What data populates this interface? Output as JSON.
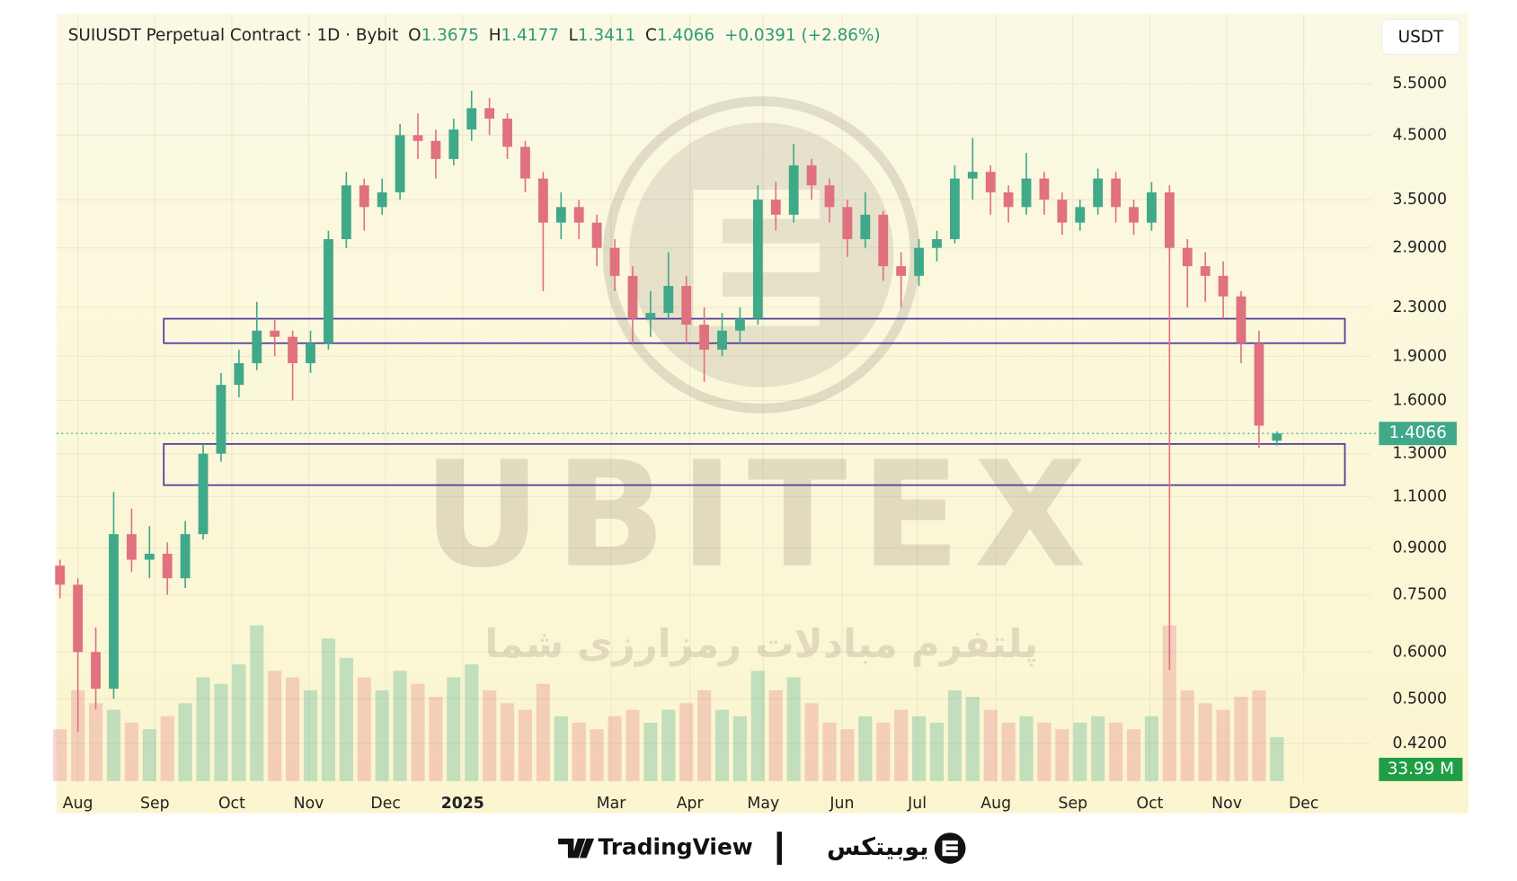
{
  "chart_data": {
    "type": "candlestick",
    "title": "SUIUSDT Perpetual Contract · 1D · Bybit",
    "ohlc_labels": [
      "O",
      "H",
      "L",
      "C"
    ],
    "change_label": "+0.0391 (+2.86%)",
    "currency": "USDT",
    "up_color": "#3fa98a",
    "down_color": "#e0717f",
    "log_scale": true,
    "grid": true,
    "open": [
      0.84,
      0.78,
      0.6,
      0.52,
      0.95,
      0.86,
      0.88,
      0.8,
      0.95,
      1.3,
      1.7,
      1.85,
      2.1,
      2.05,
      1.85,
      2.0,
      3.0,
      3.7,
      3.4,
      3.6,
      4.5,
      4.4,
      4.1,
      4.6,
      5.0,
      4.8,
      4.3,
      3.8,
      3.2,
      3.4,
      3.2,
      2.9,
      2.6,
      2.2,
      2.25,
      2.5,
      2.15,
      1.95,
      2.1,
      2.2,
      3.5,
      3.3,
      4.0,
      3.7,
      3.4,
      3.0,
      3.3,
      2.7,
      2.6,
      2.9,
      3.0,
      3.8,
      3.9,
      3.6,
      3.4,
      3.8,
      3.5,
      3.2,
      3.4,
      3.8,
      3.4,
      3.2,
      3.6,
      2.9,
      2.7,
      2.6,
      2.4,
      2.0,
      1.3675
    ],
    "high": [
      0.86,
      0.8,
      0.66,
      1.12,
      1.05,
      0.98,
      0.92,
      1.0,
      1.35,
      1.78,
      1.95,
      2.35,
      2.2,
      2.1,
      2.1,
      3.1,
      3.9,
      3.8,
      3.8,
      4.7,
      4.9,
      4.6,
      4.8,
      5.35,
      5.2,
      4.9,
      4.4,
      3.9,
      3.6,
      3.5,
      3.3,
      3.0,
      2.7,
      2.45,
      2.85,
      2.6,
      2.3,
      2.25,
      2.3,
      3.7,
      3.75,
      4.35,
      4.1,
      3.8,
      3.5,
      3.6,
      3.35,
      2.85,
      3.0,
      3.1,
      4.0,
      4.45,
      4.0,
      3.7,
      4.2,
      3.9,
      3.6,
      3.5,
      3.95,
      3.9,
      3.5,
      3.75,
      3.7,
      3.0,
      2.85,
      2.75,
      2.45,
      2.1,
      1.4177
    ],
    "low": [
      0.74,
      0.44,
      0.48,
      0.5,
      0.82,
      0.8,
      0.75,
      0.77,
      0.93,
      1.26,
      1.62,
      1.8,
      1.9,
      1.6,
      1.78,
      1.95,
      2.9,
      3.1,
      3.3,
      3.5,
      4.1,
      3.8,
      4.0,
      4.4,
      4.5,
      4.1,
      3.6,
      2.45,
      3.0,
      3.0,
      2.7,
      2.45,
      2.0,
      2.05,
      2.2,
      2.0,
      1.72,
      1.9,
      2.0,
      2.15,
      3.1,
      3.2,
      3.5,
      3.2,
      2.8,
      2.9,
      2.55,
      2.3,
      2.5,
      2.75,
      2.95,
      3.5,
      3.3,
      3.2,
      3.3,
      3.3,
      3.05,
      3.1,
      3.3,
      3.2,
      3.05,
      3.1,
      0.56,
      2.3,
      2.35,
      2.2,
      1.85,
      1.33,
      1.3411
    ],
    "close": [
      0.78,
      0.6,
      0.52,
      0.95,
      0.86,
      0.88,
      0.8,
      0.95,
      1.3,
      1.7,
      1.85,
      2.1,
      2.05,
      1.85,
      2.0,
      3.0,
      3.7,
      3.4,
      3.6,
      4.5,
      4.4,
      4.1,
      4.6,
      5.0,
      4.8,
      4.3,
      3.8,
      3.2,
      3.4,
      3.2,
      2.9,
      2.6,
      2.2,
      2.25,
      2.5,
      2.15,
      1.95,
      2.1,
      2.2,
      3.5,
      3.3,
      4.0,
      3.7,
      3.4,
      3.0,
      3.3,
      2.7,
      2.6,
      2.9,
      3.0,
      3.8,
      3.9,
      3.6,
      3.4,
      3.8,
      3.5,
      3.2,
      3.4,
      3.8,
      3.4,
      3.2,
      3.6,
      2.9,
      2.7,
      2.6,
      2.4,
      2.0,
      1.45,
      1.4066
    ],
    "xlim": [
      -0.2,
      78.7
    ],
    "xticks": [
      {
        "value": 1.0,
        "label": "Aug"
      },
      {
        "value": 5.3,
        "label": "Sep"
      },
      {
        "value": 9.6,
        "label": "Oct"
      },
      {
        "value": 13.9,
        "label": "Nov"
      },
      {
        "value": 18.2,
        "label": "Dec"
      },
      {
        "value": 22.5,
        "label": "2025"
      },
      {
        "value": 30.8,
        "label": "Mar"
      },
      {
        "value": 35.2,
        "label": "Apr"
      },
      {
        "value": 39.3,
        "label": "May"
      },
      {
        "value": 43.7,
        "label": "Jun"
      },
      {
        "value": 47.9,
        "label": "Jul"
      },
      {
        "value": 52.3,
        "label": "Aug"
      },
      {
        "value": 56.6,
        "label": "Sep"
      },
      {
        "value": 60.9,
        "label": "Oct"
      },
      {
        "value": 65.2,
        "label": "Nov"
      },
      {
        "value": 69.5,
        "label": "Dec"
      }
    ],
    "ylim": [
      0.36,
      7.2
    ],
    "yticks": [
      {
        "value": 5.5,
        "label": "5.5000"
      },
      {
        "value": 4.5,
        "label": "4.5000"
      },
      {
        "value": 3.5,
        "label": "3.5000"
      },
      {
        "value": 2.9,
        "label": "2.9000"
      },
      {
        "value": 2.3,
        "label": "2.3000"
      },
      {
        "value": 1.9,
        "label": "1.9000"
      },
      {
        "value": 1.6,
        "label": "1.6000"
      },
      {
        "value": 1.3,
        "label": "1.3000"
      },
      {
        "value": 1.1,
        "label": "1.1000"
      },
      {
        "value": 0.9,
        "label": "0.9000"
      },
      {
        "value": 0.75,
        "label": "0.7500"
      },
      {
        "value": 0.6,
        "label": "0.6000"
      },
      {
        "value": 0.5,
        "label": "0.5000"
      },
      {
        "value": 0.42,
        "label": "0.4200"
      }
    ],
    "volume": {
      "values": [
        40,
        70,
        60,
        55,
        45,
        40,
        50,
        60,
        80,
        75,
        90,
        120,
        85,
        80,
        70,
        110,
        95,
        80,
        70,
        85,
        75,
        65,
        80,
        90,
        70,
        60,
        55,
        75,
        50,
        45,
        40,
        50,
        55,
        45,
        55,
        60,
        70,
        55,
        50,
        85,
        70,
        80,
        60,
        45,
        40,
        50,
        45,
        55,
        50,
        45,
        70,
        65,
        55,
        45,
        50,
        45,
        40,
        45,
        50,
        45,
        40,
        50,
        120,
        70,
        60,
        55,
        65,
        70,
        33.99
      ],
      "last_label": "33.99 M",
      "ylim": [
        0,
        150
      ]
    },
    "zones": [
      {
        "low": 2.0,
        "high": 2.2,
        "start": 5.8,
        "end": 71.8
      },
      {
        "low": 1.15,
        "high": 1.35,
        "start": 5.8,
        "end": 71.8
      }
    ],
    "zone_color": "#4b3a9e"
  },
  "watermark": {
    "brand": "UBITEX",
    "tagline": "پلتفرم مبادلات رمزارزی شما"
  },
  "footer": {
    "left": "TradingView",
    "right": "یوبیتکس"
  }
}
